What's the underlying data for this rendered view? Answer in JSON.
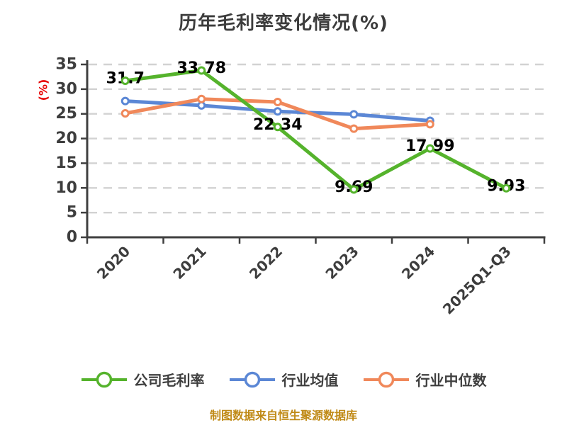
{
  "title": "历年毛利率变化情况(%)",
  "footer": "制图数据来自恒生聚源数据库",
  "colors": {
    "company_line": "#55b32c",
    "industry_avg_line": "#5b87d5",
    "industry_median_line": "#f0885a",
    "title_text": "#3c3c3c",
    "axis": "#3f3f3f",
    "tick_label": "#3d3d3d",
    "grid": "#d2d2d2",
    "data_label": "#000000",
    "y_axis_name": "#e60000",
    "legend_text": "#3f3f3f",
    "footer_text": "#c08a17",
    "marker_fill": "#ffffff",
    "background": "#ffffff"
  },
  "chart_data": {
    "type": "line",
    "title": "历年毛利率变化情况(%)",
    "categories": [
      "2020",
      "2021",
      "2022",
      "2023",
      "2024",
      "2025Q1-Q3"
    ],
    "series": [
      {
        "name": "公司毛利率",
        "color": "#55b32c",
        "values": [
          31.7,
          33.78,
          22.34,
          9.69,
          17.99,
          9.93
        ],
        "labels": [
          "31.7",
          "33.78",
          "22.34",
          "9.69",
          "17.99",
          "9.93"
        ],
        "show_labels": true
      },
      {
        "name": "行业均值",
        "color": "#5b87d5",
        "values": [
          27.6,
          26.7,
          25.5,
          24.9,
          23.6
        ],
        "show_labels": false
      },
      {
        "name": "行业中位数",
        "color": "#f0885a",
        "values": [
          25.1,
          28.0,
          27.4,
          22.0,
          22.9
        ],
        "show_labels": false
      }
    ],
    "xlabel": "",
    "ylabel": "(%)",
    "ylim": [
      0,
      35
    ],
    "yticks": [
      0,
      5,
      10,
      15,
      20,
      25,
      30,
      35
    ],
    "grid": true,
    "grid_style": "dashed",
    "x_tick_label_rotation": 45,
    "legend_position": "bottom",
    "legend_entries": [
      "公司毛利率",
      "行业均值",
      "行业中位数"
    ]
  }
}
